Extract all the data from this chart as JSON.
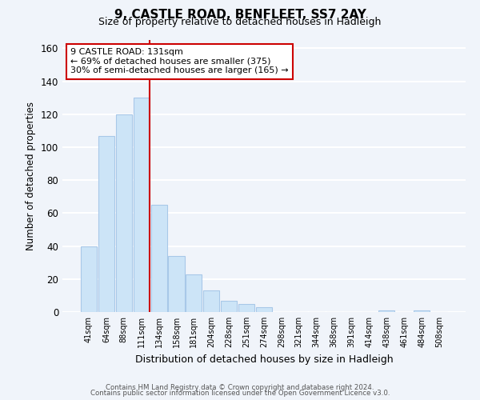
{
  "title": "9, CASTLE ROAD, BENFLEET, SS7 2AY",
  "subtitle": "Size of property relative to detached houses in Hadleigh",
  "xlabel": "Distribution of detached houses by size in Hadleigh",
  "ylabel": "Number of detached properties",
  "bar_labels": [
    "41sqm",
    "64sqm",
    "88sqm",
    "111sqm",
    "134sqm",
    "158sqm",
    "181sqm",
    "204sqm",
    "228sqm",
    "251sqm",
    "274sqm",
    "298sqm",
    "321sqm",
    "344sqm",
    "368sqm",
    "391sqm",
    "414sqm",
    "438sqm",
    "461sqm",
    "484sqm",
    "508sqm"
  ],
  "bar_values": [
    40,
    107,
    120,
    130,
    65,
    34,
    23,
    13,
    7,
    5,
    3,
    0,
    0,
    0,
    0,
    0,
    0,
    1,
    0,
    1,
    0
  ],
  "bar_color": "#cce4f7",
  "bar_edge_color": "#a8c8e8",
  "vline_color": "#cc0000",
  "annotation_title": "9 CASTLE ROAD: 131sqm",
  "annotation_line1": "← 69% of detached houses are smaller (375)",
  "annotation_line2": "30% of semi-detached houses are larger (165) →",
  "annotation_box_color": "#ffffff",
  "annotation_box_edge": "#cc0000",
  "ylim": [
    0,
    165
  ],
  "yticks": [
    0,
    20,
    40,
    60,
    80,
    100,
    120,
    140,
    160
  ],
  "footer1": "Contains HM Land Registry data © Crown copyright and database right 2024.",
  "footer2": "Contains public sector information licensed under the Open Government Licence v3.0.",
  "background_color": "#f0f4fa",
  "grid_color": "#ffffff"
}
